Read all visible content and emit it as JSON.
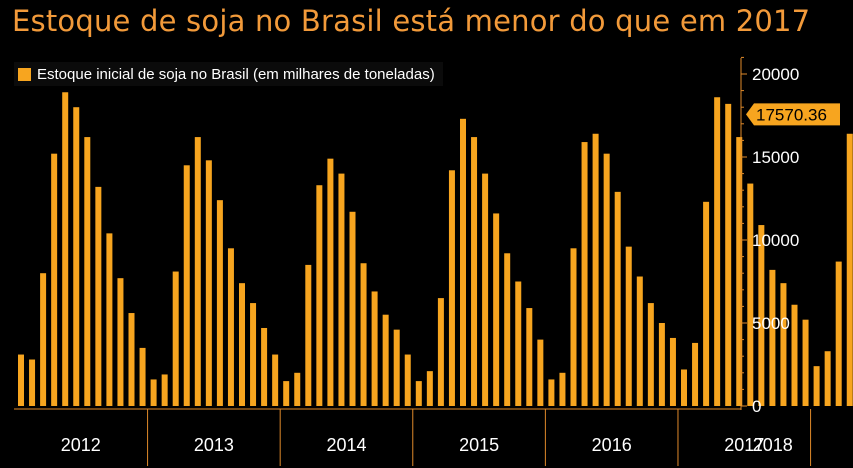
{
  "title": "Estoque de soja no Brasil está menor do que em 2017",
  "chart_data": {
    "type": "bar",
    "title": "Estoque de soja no Brasil está menor do que em 2017",
    "legend": [
      "Estoque inicial de soja no Brasil (em milhares de toneladas)"
    ],
    "legend_position": "top-left",
    "xlabel": "",
    "ylabel": "",
    "ylim": [
      0,
      21000
    ],
    "y_ticks": [
      0,
      5000,
      10000,
      15000,
      20000
    ],
    "y_tick_labels": [
      "0",
      "5000",
      "10000",
      "15000",
      "20000"
    ],
    "years": [
      "2012",
      "2013",
      "2014",
      "2015",
      "2016",
      "2017",
      "2018"
    ],
    "series": [
      {
        "name": "Estoque inicial de soja no Brasil (em milhares de toneladas)",
        "values": [
          3100,
          2800,
          8000,
          15200,
          18900,
          18000,
          16200,
          13200,
          10400,
          7700,
          5600,
          3500,
          1600,
          1900,
          8100,
          14500,
          16200,
          14800,
          12400,
          9500,
          7400,
          6200,
          4700,
          3100,
          1500,
          2000,
          8500,
          13300,
          14900,
          14000,
          11700,
          8600,
          6900,
          5500,
          4600,
          3100,
          1500,
          2100,
          6500,
          14200,
          17300,
          16200,
          14000,
          11600,
          9200,
          7500,
          5900,
          4000,
          1600,
          2000,
          9500,
          15900,
          16400,
          15200,
          12900,
          9600,
          7800,
          6200,
          5000,
          4100,
          2200,
          3800,
          12300,
          18600,
          18200,
          16200,
          13400,
          10900,
          8200,
          7400,
          6100,
          5200,
          2400,
          3300,
          8700,
          16400,
          17570.36
        ]
      }
    ],
    "last_value_label": "17570.36",
    "bar_color": "#f7a51f",
    "label_bg": "#f7a51f"
  }
}
